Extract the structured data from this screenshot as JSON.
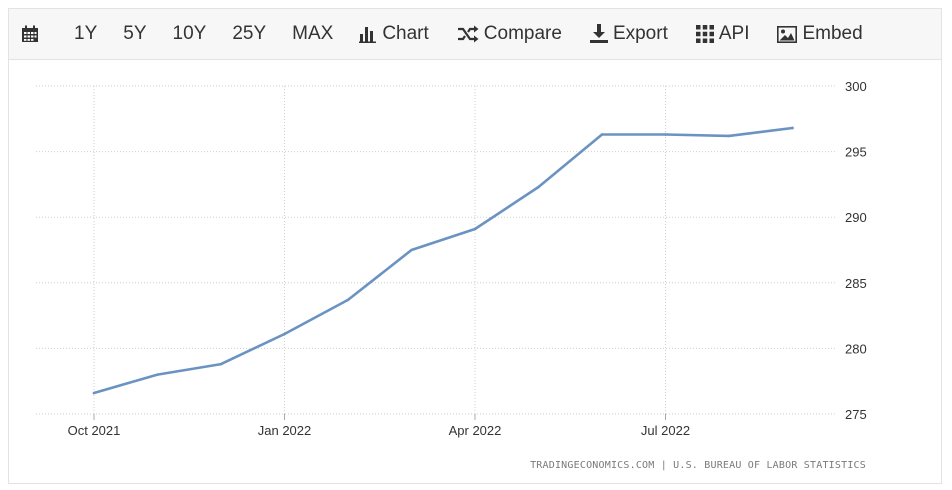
{
  "toolbar": {
    "calendar_icon": "calendar-icon",
    "ranges": [
      "1Y",
      "5Y",
      "10Y",
      "25Y",
      "MAX"
    ],
    "chart_label": "Chart",
    "compare_label": "Compare",
    "export_label": "Export",
    "api_label": "API",
    "embed_label": "Embed"
  },
  "source": "TRADINGECONOMICS.COM | U.S. BUREAU OF LABOR STATISTICS",
  "chart_data": {
    "type": "line",
    "title": "",
    "xlabel": "",
    "ylabel": "",
    "x": [
      "2021-10",
      "2021-11",
      "2021-12",
      "2022-01",
      "2022-02",
      "2022-03",
      "2022-04",
      "2022-05",
      "2022-06",
      "2022-07",
      "2022-08",
      "2022-09"
    ],
    "x_tick_labels": [
      {
        "label": "Oct 2021",
        "at": "2021-10"
      },
      {
        "label": "Jan 2022",
        "at": "2022-01"
      },
      {
        "label": "Apr 2022",
        "at": "2022-04"
      },
      {
        "label": "Jul 2022",
        "at": "2022-07"
      }
    ],
    "series": [
      {
        "values": [
          276.6,
          278.0,
          278.8,
          281.1,
          283.7,
          287.5,
          289.1,
          292.3,
          296.3,
          296.3,
          296.2,
          296.8
        ],
        "color": "#6a93c2"
      }
    ],
    "ylim": [
      275,
      300
    ],
    "y_ticks": [
      275,
      280,
      285,
      290,
      295,
      300
    ],
    "grid": true,
    "legend": "none"
  }
}
